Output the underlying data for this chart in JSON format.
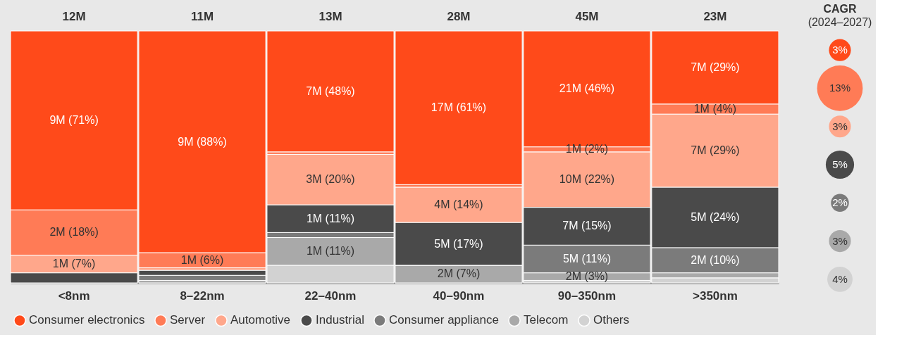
{
  "chart_data": [
    {
      "type": "bar",
      "stacked": true,
      "legend": "bottom",
      "tick_labels": "x",
      "ylim": [
        0,
        100
      ],
      "categories": [
        "<8nm",
        "8–22nm",
        "22–40nm",
        "40–90nm",
        "90–350nm",
        ">350nm"
      ],
      "annotations": [
        "12M",
        "11M",
        "13M",
        "28M",
        "45M",
        "23M"
      ],
      "series": [
        {
          "name": "Others",
          "color": "#d2d2d2",
          "values": [
            0,
            0,
            7,
            0,
            1,
            2
          ],
          "value_labels": [
            null,
            null,
            null,
            null,
            null,
            null
          ]
        },
        {
          "name": "Telecom",
          "color": "#a9a9a9",
          "values": [
            0,
            1,
            11,
            7,
            3,
            2
          ],
          "value_labels": [
            null,
            null,
            "1M (11%)",
            "2M (7%)",
            "2M (3%)",
            null
          ]
        },
        {
          "name": "Consumer appliance",
          "color": "#7b7b7b",
          "values": [
            0,
            2,
            2,
            0,
            11,
            10
          ],
          "value_labels": [
            null,
            null,
            null,
            null,
            "5M (11%)",
            "2M (10%)"
          ]
        },
        {
          "name": "Industrial",
          "color": "#4a4a4a",
          "values": [
            4,
            2,
            11,
            17,
            15,
            24
          ],
          "value_labels": [
            null,
            null,
            "1M (11%)",
            "5M (17%)",
            "7M (15%)",
            "5M (24%)"
          ]
        },
        {
          "name": "Automotive",
          "color": "#ffa78b",
          "values": [
            7,
            1,
            20,
            14,
            22,
            29
          ],
          "value_labels": [
            "1M (7%)",
            null,
            "3M (20%)",
            "4M (14%)",
            "10M (22%)",
            "7M (29%)"
          ]
        },
        {
          "name": "Server",
          "color": "#ff7b56",
          "values": [
            18,
            6,
            1,
            1,
            2,
            4
          ],
          "value_labels": [
            "2M (18%)",
            "1M (6%)",
            null,
            null,
            "1M (2%)",
            "1M (4%)"
          ]
        },
        {
          "name": "Consumer electronics",
          "color": "#ff4a1a",
          "values": [
            71,
            88,
            48,
            61,
            46,
            29
          ],
          "value_labels": [
            "9M (71%)",
            "9M (88%)",
            "7M (48%)",
            "17M (61%)",
            "21M (46%)",
            "7M (29%)"
          ]
        }
      ]
    },
    {
      "type": "other",
      "title": "CAGR",
      "subtitle": "(2024–2027)",
      "values": [
        3,
        13,
        3,
        5,
        2,
        3,
        4
      ],
      "value_labels": [
        "3%",
        "13%",
        "3%",
        "5%",
        "2%",
        "3%",
        "4%"
      ],
      "colors": [
        "#ff4a1a",
        "#ff7b56",
        "#ffa78b",
        "#4a4a4a",
        "#7b7b7b",
        "#a9a9a9",
        "#d2d2d2"
      ]
    }
  ]
}
